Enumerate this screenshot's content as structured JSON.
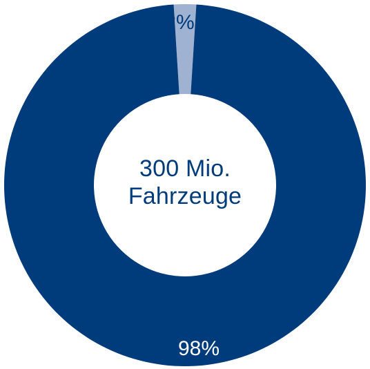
{
  "chart_data": {
    "type": "pie",
    "variant": "donut",
    "center_label": [
      "300 Mio.",
      "Fahrzeuge"
    ],
    "slices": [
      {
        "label": "98%",
        "value": 98,
        "color": "#003b7c"
      },
      {
        "label": "2%",
        "value": 2,
        "color": "#9fb2d1"
      }
    ],
    "label_colors": {
      "98%": "#ffffff",
      "2%": "#003b7c"
    }
  }
}
